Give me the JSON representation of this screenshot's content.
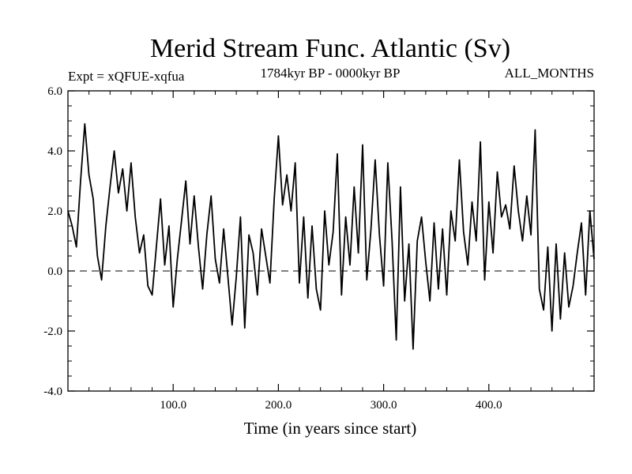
{
  "chart_data": {
    "type": "line",
    "title": "Merid Stream Func. Atlantic (Sv)",
    "subtitle": "1784kyr BP - 0000kyr BP",
    "annotation_left": "Expt = xQFUE-xqfua",
    "annotation_right": "ALL_MONTHS",
    "xlabel": "Time (in years since start)",
    "ylabel": "",
    "xlim": [
      0,
      500
    ],
    "ylim": [
      -4.0,
      6.0
    ],
    "xticks": [
      100,
      200,
      300,
      400
    ],
    "xtick_labels": [
      "100.0",
      "200.0",
      "300.0",
      "400.0"
    ],
    "yticks": [
      -4.0,
      -2.0,
      0.0,
      2.0,
      4.0,
      6.0
    ],
    "ytick_labels": [
      "-4.0",
      "-2.0",
      "0.0",
      "2.0",
      "4.0",
      "6.0"
    ],
    "reference_line": {
      "y": 0.0,
      "style": "dashed"
    },
    "series": [
      {
        "name": "Merid Stream Func. Atlantic",
        "x": [
          0,
          4,
          8,
          12,
          16,
          20,
          24,
          28,
          32,
          36,
          40,
          44,
          48,
          52,
          56,
          60,
          64,
          68,
          72,
          76,
          80,
          84,
          88,
          92,
          96,
          100,
          104,
          108,
          112,
          116,
          120,
          124,
          128,
          132,
          136,
          140,
          144,
          148,
          152,
          156,
          160,
          164,
          168,
          172,
          176,
          180,
          184,
          188,
          192,
          196,
          200,
          204,
          208,
          212,
          216,
          220,
          224,
          228,
          232,
          236,
          240,
          244,
          248,
          252,
          256,
          260,
          264,
          268,
          272,
          276,
          280,
          284,
          288,
          292,
          296,
          300,
          304,
          308,
          312,
          316,
          320,
          324,
          328,
          332,
          336,
          340,
          344,
          348,
          352,
          356,
          360,
          364,
          368,
          372,
          376,
          380,
          384,
          388,
          392,
          396,
          400,
          404,
          408,
          412,
          416,
          420,
          424,
          428,
          432,
          436,
          440,
          444,
          448,
          452,
          456,
          460,
          464,
          468,
          472,
          476,
          480,
          484,
          488,
          492,
          496,
          500
        ],
        "y": [
          2.0,
          1.5,
          0.8,
          3.0,
          4.9,
          3.2,
          2.4,
          0.5,
          -0.3,
          1.5,
          2.8,
          4.0,
          2.6,
          3.4,
          2.0,
          3.6,
          1.8,
          0.6,
          1.2,
          -0.5,
          -0.8,
          0.8,
          2.4,
          0.2,
          1.5,
          -1.2,
          0.4,
          1.7,
          3.0,
          0.9,
          2.5,
          0.8,
          -0.6,
          1.2,
          2.5,
          0.4,
          -0.4,
          1.4,
          -0.2,
          -1.8,
          -0.2,
          1.8,
          -1.9,
          1.2,
          0.6,
          -0.8,
          1.4,
          0.5,
          -0.4,
          2.4,
          4.5,
          2.2,
          3.2,
          2.0,
          3.6,
          -0.4,
          1.8,
          -0.9,
          1.5,
          -0.6,
          -1.3,
          2.0,
          0.2,
          1.3,
          3.9,
          -0.8,
          1.8,
          0.2,
          2.8,
          0.6,
          4.2,
          -0.3,
          1.4,
          3.7,
          1.2,
          -0.5,
          3.6,
          1.0,
          -2.3,
          2.8,
          -1.0,
          0.9,
          -2.6,
          1.0,
          1.8,
          0.3,
          -1.0,
          1.6,
          -0.6,
          1.4,
          -0.8,
          2.0,
          1.0,
          3.7,
          1.3,
          0.2,
          2.3,
          1.0,
          4.3,
          -0.3,
          2.3,
          0.6,
          3.3,
          1.8,
          2.2,
          1.4,
          3.5,
          2.0,
          1.0,
          2.5,
          1.2,
          4.7,
          -0.6,
          -1.3,
          0.8,
          -2.0,
          0.9,
          -1.6,
          0.6,
          -1.2,
          -0.5,
          0.6,
          1.6,
          -0.8,
          2.0,
          0.4
        ]
      }
    ]
  }
}
